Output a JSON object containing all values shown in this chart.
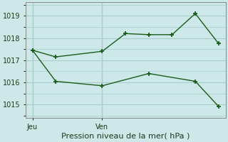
{
  "bg_color": "#cce8e8",
  "grid_color": "#aacccc",
  "line_color": "#1a5c1a",
  "xlabel": "Pression niveau de la mer( hPa )",
  "ylim": [
    1014.4,
    1019.6
  ],
  "yticks": [
    1015,
    1016,
    1017,
    1018,
    1019
  ],
  "day_labels": [
    "Jeu",
    "Ven"
  ],
  "day_positions": [
    0,
    3
  ],
  "xlim": [
    -0.3,
    8.3
  ],
  "series1_x": [
    0,
    1,
    3,
    4,
    5,
    6,
    7,
    8
  ],
  "series1_y": [
    1017.45,
    1017.15,
    1017.4,
    1018.2,
    1018.15,
    1018.15,
    1019.1,
    1017.75
  ],
  "series2_x": [
    0,
    1,
    3,
    5,
    7,
    8
  ],
  "series2_y": [
    1017.45,
    1016.05,
    1015.85,
    1016.4,
    1016.05,
    1014.92
  ],
  "vline_positions": [
    0,
    3
  ],
  "vline_color": "#888888"
}
